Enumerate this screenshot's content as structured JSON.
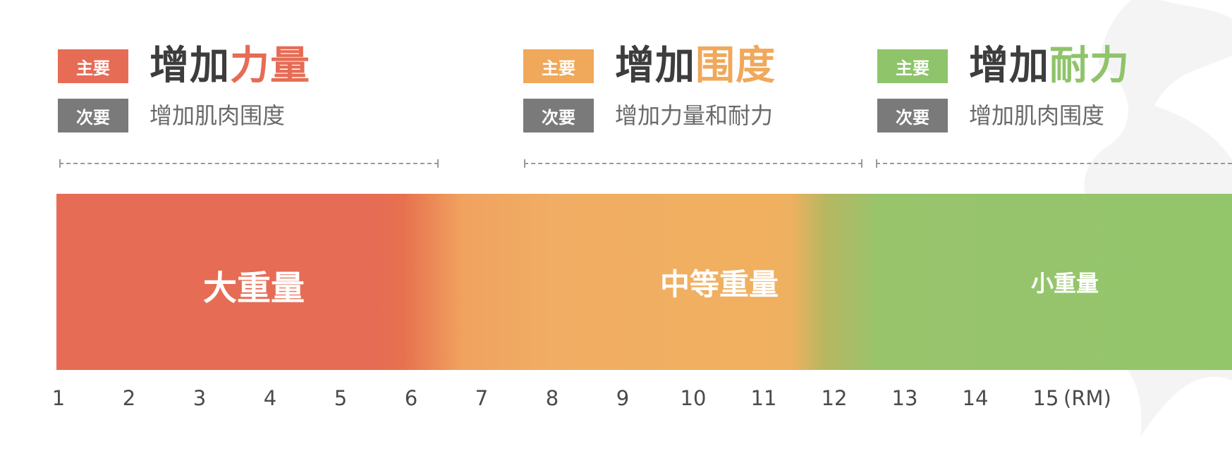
{
  "colors": {
    "heavy": "#e66c55",
    "medium": "#f0a85b",
    "light": "#8fc46a",
    "secondary_badge": "#7a7a7a",
    "text_dark": "#3d3d3d"
  },
  "groups": [
    {
      "primary_badge": "主要",
      "headline_prefix": "增加",
      "headline_accent": "力量",
      "secondary_badge": "次要",
      "secondary_text": "增加肌肉围度"
    },
    {
      "primary_badge": "主要",
      "headline_prefix": "增加",
      "headline_accent": "围度",
      "secondary_badge": "次要",
      "secondary_text": "增加力量和耐力"
    },
    {
      "primary_badge": "主要",
      "headline_prefix": "增加",
      "headline_accent": "耐力",
      "secondary_badge": "次要",
      "secondary_text": "增加肌肉围度"
    }
  ],
  "zones": [
    "大重量",
    "中等重量",
    "小重量"
  ],
  "scale": {
    "ticks": [
      "1",
      "2",
      "3",
      "4",
      "5",
      "6",
      "7",
      "8",
      "9",
      "10",
      "11",
      "12",
      "13",
      "14",
      "15"
    ],
    "unit": "(RM)"
  }
}
